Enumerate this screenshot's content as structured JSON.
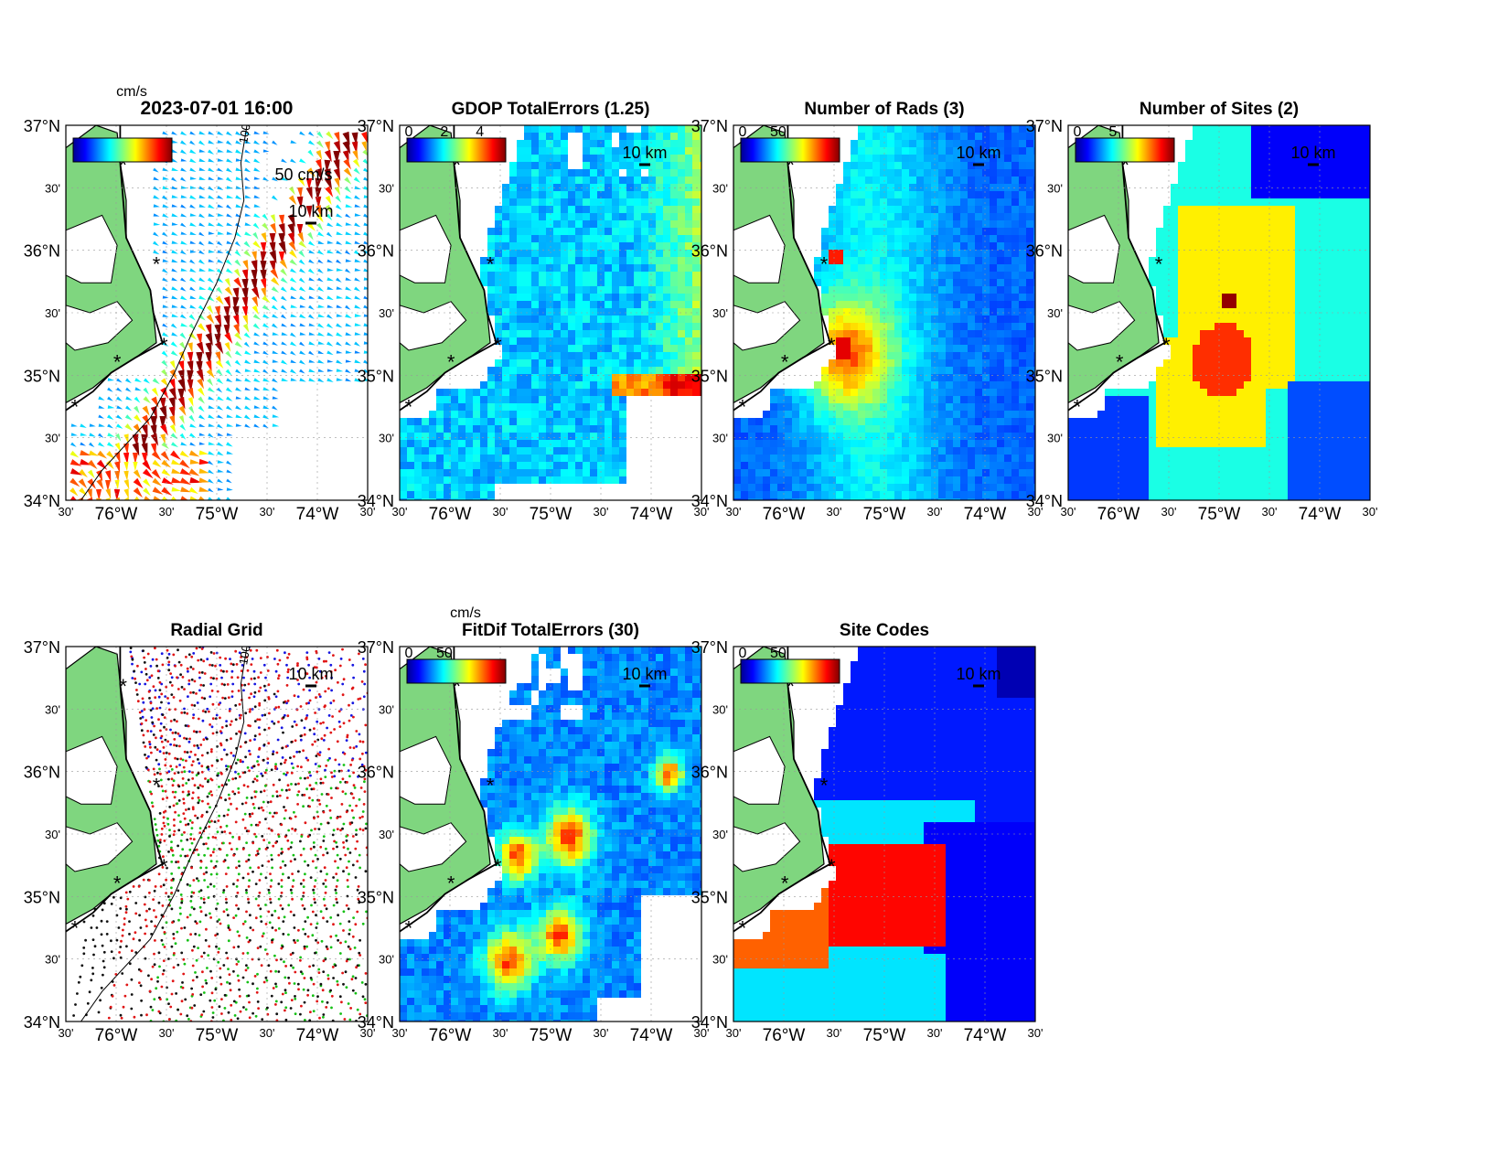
{
  "figure": {
    "timestamp": "2023-07-01 16:00",
    "velocity_unit": "cm/s",
    "velocity_scale_label": "50 cm/s",
    "distance_scale_label": "10 km",
    "site_marker": "*"
  },
  "axes": {
    "lat_labels": [
      "37°N",
      "30'",
      "36°N",
      "30'",
      "35°N",
      "30'",
      "34°N"
    ],
    "lon_labels": [
      "30'",
      "76°W",
      "30'",
      "75°W",
      "30'",
      "74°W",
      "30'"
    ]
  },
  "colors": {
    "land": "#7fd67f",
    "site": "#e01010",
    "grid_sites": [
      "#1515e0",
      "#e01515",
      "#15c015",
      "#101010"
    ]
  },
  "panels": [
    {
      "id": "total-velocity",
      "title": "2023-07-01 16:00",
      "colorbar_unit": "cm/s",
      "colorbar_ticks": [],
      "contour_label": "100",
      "kind": "vectors"
    },
    {
      "id": "gdop",
      "title": "GDOP TotalErrors (1.25)",
      "colorbar_unit": "",
      "colorbar_ticks": [
        "0",
        "2",
        "4"
      ],
      "contour_label": "1.25",
      "kind": "gdop"
    },
    {
      "id": "num-rads",
      "title": "Number of Rads (3)",
      "colorbar_unit": "",
      "colorbar_ticks": [
        "0",
        "50"
      ],
      "contour_label": "3",
      "kind": "rads"
    },
    {
      "id": "num-sites",
      "title": "Number of Sites (2)",
      "colorbar_unit": "",
      "colorbar_ticks": [
        "0",
        "5"
      ],
      "contour_label": "2",
      "kind": "sites"
    },
    {
      "id": "radial-grid",
      "title": "Radial Grid",
      "colorbar_unit": "",
      "colorbar_ticks": [],
      "contour_label": "100",
      "kind": "grid"
    },
    {
      "id": "fitdif",
      "title": "FitDif TotalErrors (30)",
      "colorbar_unit": "cm/s",
      "colorbar_ticks": [
        "0",
        "50"
      ],
      "contour_label": "30",
      "kind": "fitdif"
    },
    {
      "id": "site-codes",
      "title": "Site Codes",
      "colorbar_unit": "",
      "colorbar_ticks": [
        "0",
        "50"
      ],
      "contour_label": "",
      "kind": "codes"
    }
  ]
}
